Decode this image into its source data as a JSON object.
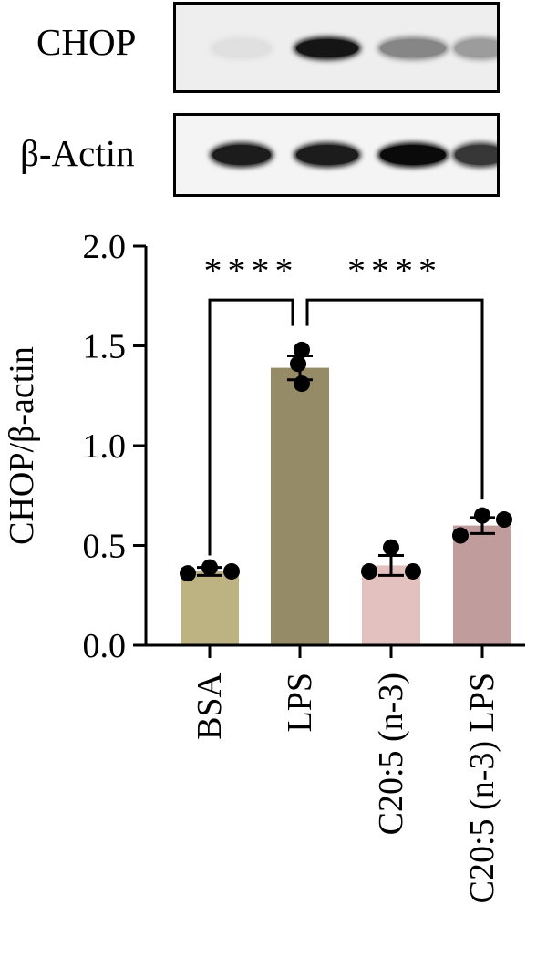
{
  "blots": [
    {
      "label": "CHOP",
      "band_intensity": [
        0.05,
        0.95,
        0.45,
        0.35
      ]
    },
    {
      "label": "β-Actin",
      "band_intensity": [
        0.92,
        0.92,
        1.0,
        0.8
      ]
    }
  ],
  "chart_data": {
    "type": "bar",
    "title": "",
    "xlabel": "",
    "ylabel": "CHOP/β-actin",
    "ylim": [
      0,
      2.0
    ],
    "yticks": [
      "0.0",
      "0.5",
      "1.0",
      "1.5",
      "2.0"
    ],
    "categories": [
      "BSA",
      "LPS",
      "C20:5 (n-3)",
      "C20:5 (n-3) LPS"
    ],
    "values": [
      0.37,
      1.39,
      0.4,
      0.6
    ],
    "errors": [
      0.02,
      0.06,
      0.05,
      0.04
    ],
    "points": [
      [
        0.36,
        0.39,
        0.37
      ],
      [
        1.31,
        1.41,
        1.48
      ],
      [
        0.37,
        0.49,
        0.37
      ],
      [
        0.55,
        0.65,
        0.63
      ]
    ],
    "bar_colors": [
      "#bdb382",
      "#958b66",
      "#e3c1bf",
      "#c19c9c"
    ],
    "significance": [
      {
        "from": 0,
        "to": 1,
        "label": "****"
      },
      {
        "from": 1,
        "to": 3,
        "label": "****"
      }
    ],
    "grid": false
  }
}
